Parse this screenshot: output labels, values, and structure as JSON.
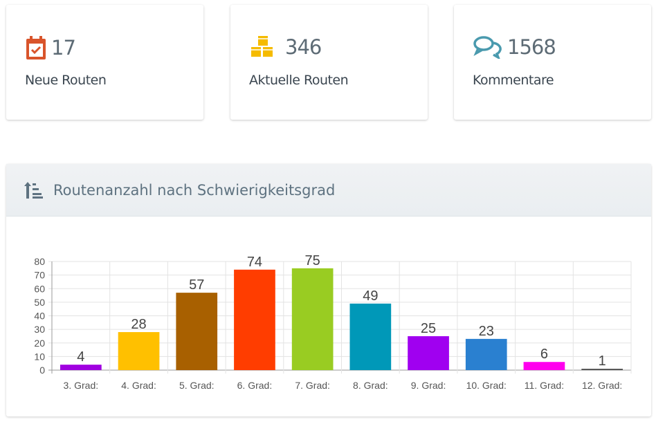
{
  "stats": [
    {
      "icon": "calendar-check-icon",
      "value": "17",
      "label": "Neue Routen",
      "color": "#d9542b"
    },
    {
      "icon": "cubes-icon",
      "value": "346",
      "label": "Aktuelle Routen",
      "color": "#f5bb00"
    },
    {
      "icon": "comments-icon",
      "value": "1568",
      "label": "Kommentare",
      "color": "#4a9aae"
    }
  ],
  "panel": {
    "title": "Routenanzahl nach Schwierigkeitsgrad"
  },
  "chart_data": {
    "type": "bar",
    "title": "Routenanzahl nach Schwierigkeitsgrad",
    "categories": [
      "3. Grad:",
      "4. Grad:",
      "5. Grad:",
      "6. Grad:",
      "7. Grad:",
      "8. Grad:",
      "9. Grad:",
      "10. Grad:",
      "11. Grad:",
      "12. Grad:"
    ],
    "values": [
      4,
      28,
      57,
      74,
      75,
      49,
      25,
      23,
      6,
      1
    ],
    "colors": [
      "#a000e0",
      "#ffc000",
      "#a86000",
      "#ff3d00",
      "#99cc22",
      "#0098b8",
      "#a000f0",
      "#2a80d0",
      "#ff00ee",
      "#555555"
    ],
    "ylim": [
      0,
      80
    ],
    "yticks": [
      0,
      10,
      20,
      30,
      40,
      50,
      60,
      70,
      80
    ],
    "grid": true,
    "xlabel": "",
    "ylabel": ""
  }
}
